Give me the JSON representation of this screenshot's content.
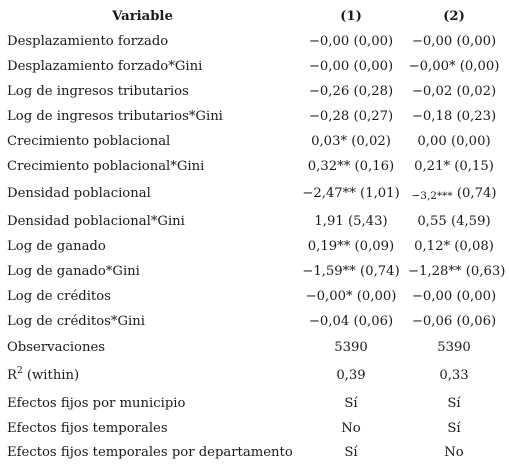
{
  "header": {
    "variable": "Variable",
    "col1": "(1)",
    "col2": "(2)"
  },
  "rows": [
    {
      "label": "Desplazamiento forzado",
      "c1": "−0,00 (0,00)",
      "c2": "−0,00 (0,00)"
    },
    {
      "label": "Desplazamiento forzado*Gini",
      "c1": "−0,00 (0,00)",
      "c2": "−0,00* (0,00)"
    },
    {
      "label": "Log de ingresos tributarios",
      "c1": "−0,26 (0,28)",
      "c2": "−0,02 (0,02)"
    },
    {
      "label": "Log de ingresos tributarios*Gini",
      "c1": "−0,28 (0,27)",
      "c2": "−0,18 (0,23)"
    },
    {
      "label": "Crecimiento poblacional",
      "c1": "0,03* (0,02)",
      "c2": "0,00 (0,00)"
    },
    {
      "label": "Crecimiento poblacional*Gini",
      "c1": "0,32** (0,16)",
      "c2": "0,21* (0,15)"
    },
    {
      "label": "Densidad poblacional",
      "c1": "−2,47** (1,01)",
      "c2a": "−3,2***",
      "c2b": " (0,74)"
    },
    {
      "label": "Densidad poblacional*Gini",
      "c1": "1,91 (5,43)",
      "c2": "0,55 (4,59)"
    },
    {
      "label": "Log de ganado",
      "c1": "0,19** (0,09)",
      "c2": "0,12* (0,08)"
    },
    {
      "label": "Log de ganado*Gini",
      "c1": "−1,59** (0,74)",
      "c2": "−1,28** (0,63)"
    },
    {
      "label": "Log de créditos",
      "c1": "−0,00* (0,00)",
      "c2": "−0,00 (0,00)"
    },
    {
      "label": "Log de créditos*Gini",
      "c1": "−0,04 (0,06)",
      "c2": "−0,06 (0,06)"
    },
    {
      "label": "Observaciones",
      "c1": "5390",
      "c2": "5390"
    },
    {
      "label_base": "R",
      "label_sup": "2",
      "label_rest": " (within)",
      "c1": "0,39",
      "c2": "0,33"
    },
    {
      "label": "Efectos fijos por municipio",
      "c1": "Sí",
      "c2": "Sí"
    },
    {
      "label": "Efectos fijos temporales",
      "c1": "No",
      "c2": "Sí"
    },
    {
      "label": "Efectos fijos temporales por departamento",
      "c1": "Sí",
      "c2": "No"
    }
  ]
}
